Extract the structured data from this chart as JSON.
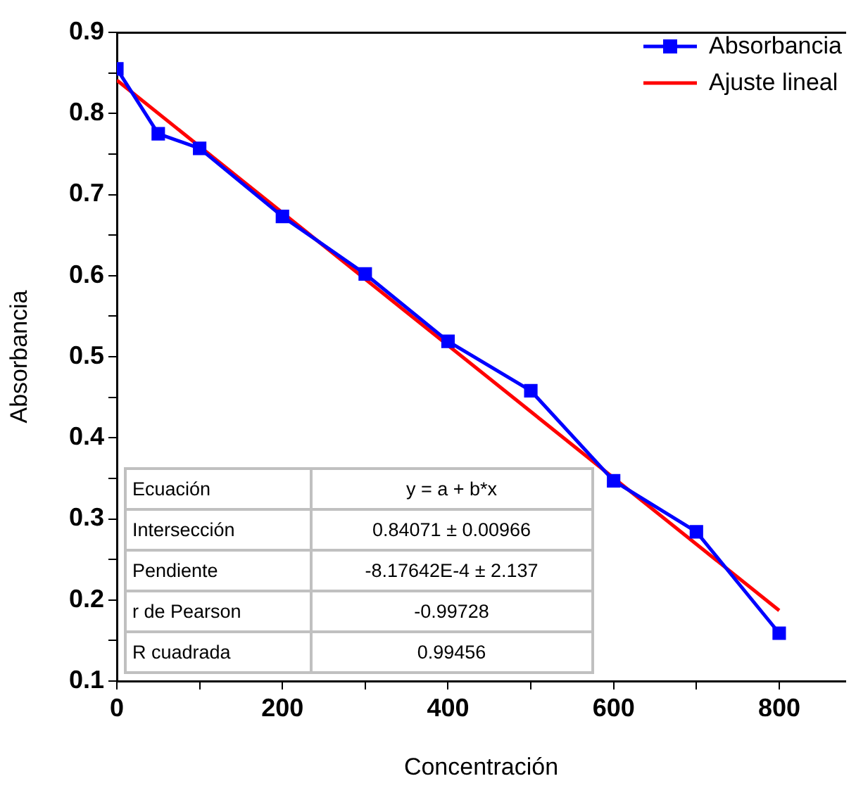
{
  "chart_data": {
    "type": "line",
    "xlabel": "Concentración",
    "ylabel": "Absorbancia",
    "xlim": [
      0,
      880
    ],
    "ylim": [
      0.1,
      0.9
    ],
    "xticks": [
      0,
      {
        "value": 100,
        "label": null
      },
      200,
      {
        "value": 300,
        "label": null
      },
      400,
      {
        "value": 500,
        "label": null
      },
      600,
      {
        "value": 700,
        "label": null
      },
      800
    ],
    "yticks": [
      0.1,
      {
        "value": 0.15,
        "label": null
      },
      0.2,
      {
        "value": 0.25,
        "label": null
      },
      0.3,
      {
        "value": 0.35,
        "label": null
      },
      0.4,
      {
        "value": 0.45,
        "label": null
      },
      0.5,
      {
        "value": 0.55,
        "label": null
      },
      0.6,
      {
        "value": 0.65,
        "label": null
      },
      0.7,
      {
        "value": 0.75,
        "label": null
      },
      0.8,
      {
        "value": 0.85,
        "label": null
      },
      0.9
    ],
    "grid": false,
    "legend": "top right",
    "series": [
      {
        "name": "Absorbancia",
        "color": "#0000ff",
        "marker": "square",
        "x": [
          0,
          50,
          100,
          200,
          300,
          400,
          500,
          600,
          700,
          800
        ],
        "values": [
          0.855,
          0.775,
          0.757,
          0.673,
          0.602,
          0.519,
          0.458,
          0.347,
          0.284,
          0.159
        ]
      },
      {
        "name": "Ajuste lineal",
        "color": "#ff0000",
        "marker": "none",
        "x": [
          0,
          800
        ],
        "values": [
          0.841,
          0.187
        ]
      }
    ],
    "annotations": [
      "Ecuación",
      "y = a + b*x",
      "Intersección",
      "0.84071 ± 0.00966",
      "Pendiente",
      "-8.17642E-4 ± 2.137",
      "r de Pearson",
      "-0.99728",
      "R cuadrada",
      "0.99456"
    ]
  }
}
